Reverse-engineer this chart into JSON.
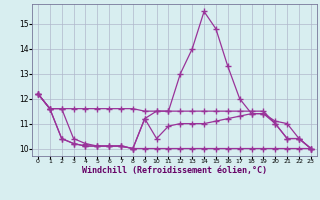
{
  "xlabel": "Windchill (Refroidissement éolien,°C)",
  "x": [
    0,
    1,
    2,
    3,
    4,
    5,
    6,
    7,
    8,
    9,
    10,
    11,
    12,
    13,
    14,
    15,
    16,
    17,
    18,
    19,
    20,
    21,
    22,
    23
  ],
  "line1": [
    12.2,
    11.6,
    11.6,
    10.4,
    10.2,
    10.1,
    10.1,
    10.1,
    10.0,
    10.0,
    10.0,
    10.0,
    10.0,
    10.0,
    10.0,
    10.0,
    10.0,
    10.0,
    10.0,
    10.0,
    10.0,
    10.0,
    10.0,
    10.0
  ],
  "line2": [
    12.2,
    11.6,
    11.6,
    11.6,
    11.6,
    11.6,
    11.6,
    11.6,
    11.6,
    11.5,
    11.5,
    11.5,
    11.5,
    11.5,
    11.5,
    11.5,
    11.5,
    11.5,
    11.5,
    11.5,
    11.0,
    10.4,
    10.4,
    10.0
  ],
  "line3": [
    12.2,
    11.6,
    10.4,
    10.2,
    10.1,
    10.1,
    10.1,
    10.1,
    10.0,
    11.2,
    10.4,
    10.9,
    11.0,
    11.0,
    11.0,
    11.1,
    11.2,
    11.3,
    11.4,
    11.4,
    11.1,
    11.0,
    10.4,
    10.0
  ],
  "line4": [
    12.2,
    11.6,
    10.4,
    10.2,
    10.1,
    10.1,
    10.1,
    10.1,
    10.0,
    11.2,
    11.5,
    11.5,
    13.0,
    14.0,
    15.5,
    14.8,
    13.3,
    12.0,
    11.4,
    11.4,
    11.0,
    10.4,
    10.4,
    10.0
  ],
  "ylim": [
    9.7,
    15.8
  ],
  "yticks": [
    10,
    11,
    12,
    13,
    14,
    15
  ],
  "bg_color": "#d8eef0",
  "grid_color": "#b0b8cc",
  "line_color": "#993399",
  "xlabel_color": "#660066"
}
